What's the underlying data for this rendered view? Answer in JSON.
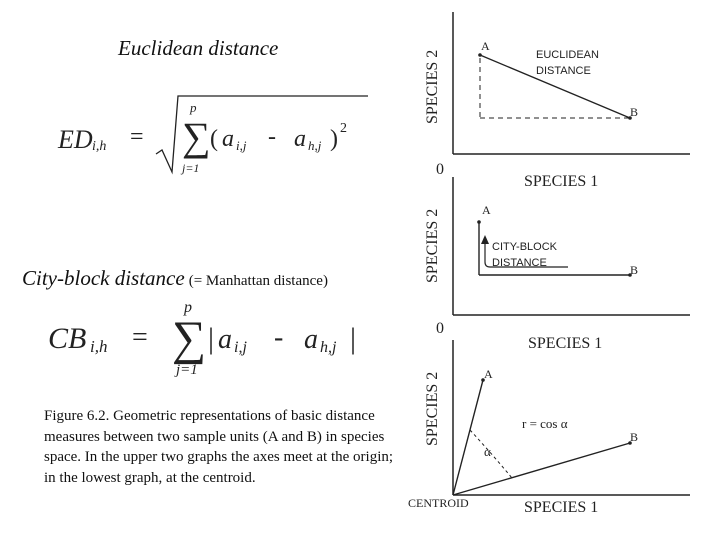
{
  "left": {
    "euclid_title": "Euclidean distance",
    "euclid_formula": {
      "lhs": "ED",
      "lhs_sub": "i,h",
      "equals": "=",
      "sigma": "∑",
      "upper": "p",
      "lower": "j=1",
      "paren_open": "(",
      "a": "a",
      "a_sub": "i,j",
      "minus": "-",
      "b": "a",
      "b_sub": "h,j",
      "paren_close": ")",
      "exponent": "2"
    },
    "city_title": "City-block distance",
    "city_subtitle": "(= Manhattan distance)",
    "city_formula": {
      "lhs": "CB",
      "lhs_sub": "i,h",
      "equals": "=",
      "sigma": "∑",
      "upper": "p",
      "lower": "j=1",
      "bar_open": "|",
      "a": "a",
      "a_sub": "i,j",
      "minus": "-",
      "b": "a",
      "b_sub": "h,j",
      "bar_close": "|"
    },
    "caption": "Figure 6.2.  Geometric representations of basic distance measures between two sample units (A and B) in species space.  In the upper two graphs the axes meet at the origin; in the lowest graph, at the centroid."
  },
  "graphs": {
    "g1": {
      "ylabel": "SPECIES 2",
      "xlabel": "SPECIES 1",
      "origin": "0",
      "point_a": "A",
      "point_b": "B",
      "label_line1": "EUCLIDEAN",
      "label_line2": "DISTANCE"
    },
    "g2": {
      "ylabel": "SPECIES 2",
      "xlabel": "SPECIES 1",
      "origin": "0",
      "point_a": "A",
      "point_b": "B",
      "label_line1": "CITY-BLOCK",
      "label_line2": "DISTANCE"
    },
    "g3": {
      "ylabel": "SPECIES 2",
      "xlabel": "SPECIES 1",
      "origin": "CENTROID",
      "point_a": "A",
      "point_b": "B",
      "angle": "α",
      "relation": "r = cos α"
    }
  }
}
